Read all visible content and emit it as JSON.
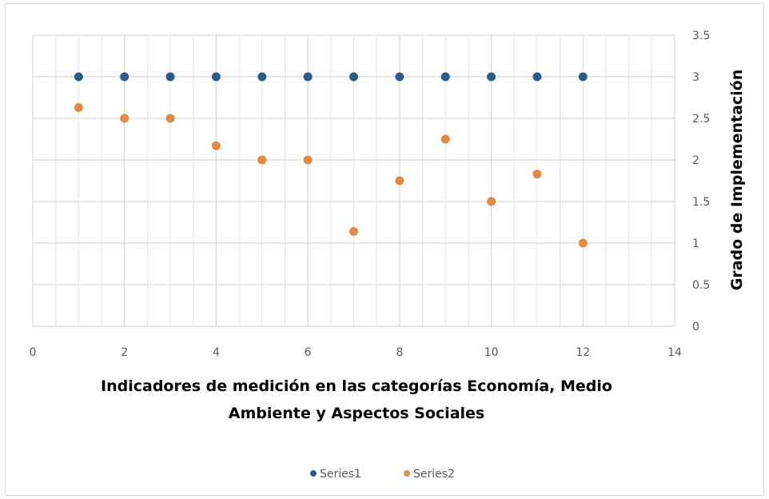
{
  "chart_data": {
    "type": "scatter",
    "title": "",
    "xlabel_lines": [
      "Indicadores de medición en las categorías Economía, Medio",
      "Ambiente y Aspectos Sociales"
    ],
    "ylabel": "Grado de Implementación",
    "xlim": [
      0,
      14
    ],
    "ylim": [
      0,
      3.5
    ],
    "x_major_ticks": [
      0,
      2,
      4,
      6,
      8,
      10,
      12,
      14
    ],
    "y_major_ticks": [
      0,
      0.5,
      1,
      1.5,
      2,
      2.5,
      3,
      3.5
    ],
    "x_tick_labels": [
      "0",
      "2",
      "4",
      "6",
      "8",
      "10",
      "12",
      "14"
    ],
    "y_tick_labels": [
      "0",
      "0.5",
      "1",
      "1.5",
      "2",
      "2.5",
      "3",
      "3.5"
    ],
    "y_axis_position": "right",
    "grid": {
      "major": true,
      "minor_vertical": true
    },
    "legend_position": "bottom",
    "series": [
      {
        "name": "Series1",
        "color": "#2e5a8a",
        "points": [
          [
            1,
            3
          ],
          [
            2,
            3
          ],
          [
            3,
            3
          ],
          [
            4,
            3
          ],
          [
            5,
            3
          ],
          [
            6,
            3
          ],
          [
            7,
            3
          ],
          [
            8,
            3
          ],
          [
            9,
            3
          ],
          [
            10,
            3
          ],
          [
            11,
            3
          ],
          [
            12,
            3
          ]
        ]
      },
      {
        "name": "Series2",
        "color": "#e08a45",
        "points": [
          [
            1,
            2.63
          ],
          [
            2,
            2.5
          ],
          [
            3,
            2.5
          ],
          [
            4,
            2.17
          ],
          [
            5,
            2
          ],
          [
            6,
            2
          ],
          [
            7,
            1.14
          ],
          [
            8,
            1.75
          ],
          [
            9,
            2.25
          ],
          [
            10,
            1.5
          ],
          [
            11,
            1.83
          ],
          [
            12,
            1
          ]
        ]
      }
    ]
  },
  "colors": {
    "grid_major": "#d0d0d0",
    "grid_minor": "#e6e6e6",
    "frame_border": "#d9d9d9"
  }
}
